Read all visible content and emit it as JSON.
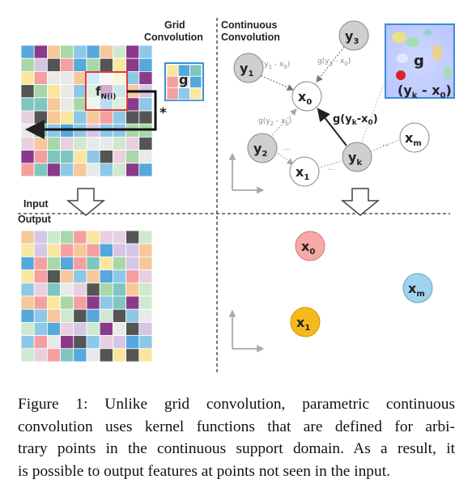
{
  "labels": {
    "grid_convolution_line1": "Grid",
    "grid_convolution_line2": "Convolution",
    "continuous_convolution_line1": "Continuous",
    "continuous_convolution_line2": "Convolution",
    "input": "Input",
    "output": "Output",
    "kernel_g": "g",
    "receptive_field": "f",
    "receptive_field_sub": "N(i)",
    "conv_operator": "*",
    "inset_g": "g",
    "inset_expr": "(y",
    "inset_expr_sub": "k",
    "inset_expr_tail": " - x",
    "inset_expr_sub0": "0",
    "inset_expr_close": ")"
  },
  "nodes": {
    "x0": {
      "base": "x",
      "sub": "0"
    },
    "x1": {
      "base": "x",
      "sub": "1"
    },
    "xm": {
      "base": "x",
      "sub": "m"
    },
    "y1": {
      "base": "y",
      "sub": "1"
    },
    "y2": {
      "base": "y",
      "sub": "2"
    },
    "y3": {
      "base": "y",
      "sub": "3"
    },
    "yk": {
      "base": "y",
      "sub": "k"
    }
  },
  "edges": {
    "g1": {
      "pre": "g(y",
      "sub": "1",
      "post": " - x",
      "sub2": "0",
      "close": ")"
    },
    "g2": {
      "pre": "g(y",
      "sub": "2",
      "post": " - x",
      "sub2": "0",
      "close": ")"
    },
    "g3": {
      "pre": "g(y",
      "sub": "3",
      "post": " - x",
      "sub2": "0",
      "close": ")"
    },
    "gk": {
      "pre": "g(y",
      "sub": "k",
      "post": "-x",
      "sub2": "0",
      "close": ")"
    },
    "ellipsis": "..."
  },
  "output_points": {
    "x0": {
      "base": "x",
      "sub": "0"
    },
    "xm": {
      "base": "x",
      "sub": "m"
    },
    "x1": {
      "base": "x",
      "sub": "1"
    }
  },
  "colors": {
    "grid_palette": [
      "#f4a0a0",
      "#f6c89a",
      "#f9e79f",
      "#a8d8a8",
      "#7fc6c0",
      "#8ec8e8",
      "#56a8dc",
      "#8b3a8b",
      "#555555",
      "#e8d0e0",
      "#d6c6e6",
      "#cfe8cf",
      "#e9e9e9"
    ],
    "x0_fill": "#f7a9a8",
    "xm_fill": "#9fd3ef",
    "x1_fill": "#f5b91e",
    "y_fill": "#cfcfcf",
    "kernel_border": "#3a8fd4",
    "receptive_border": "#e23b3b",
    "inset_point": "#d9232a"
  },
  "caption_lines": [
    "Figure 1: Unlike grid convolution, parametric continuous",
    "convolution uses kernel functions that are defined for arbi-",
    "trary points in the continuous support domain. As a result, it",
    "is possible to output features at points not seen in the input."
  ]
}
